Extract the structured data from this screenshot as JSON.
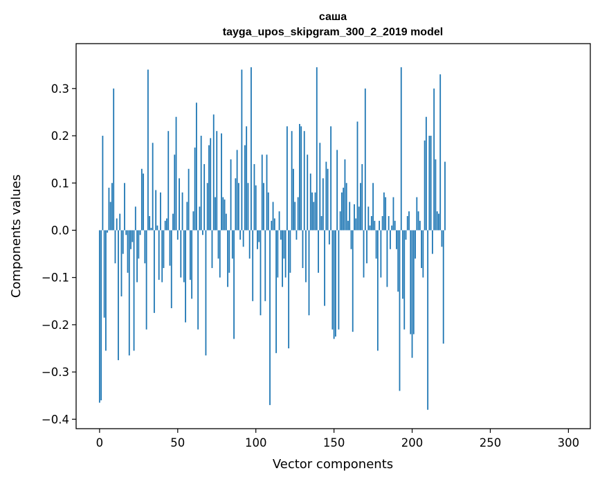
{
  "chart_data": {
    "type": "bar",
    "title": "саша",
    "subtitle": "tayga_upos_skipgram_300_2_2019 model",
    "xlabel": "Vector components",
    "ylabel": "Components values",
    "xlim": [
      -15,
      314
    ],
    "ylim": [
      -0.42,
      0.395
    ],
    "x_ticks": [
      0,
      50,
      100,
      150,
      200,
      250,
      300
    ],
    "y_ticks": [
      -0.4,
      -0.3,
      -0.2,
      -0.1,
      0.0,
      0.1,
      0.2,
      0.3
    ],
    "y_tick_labels": [
      "−0.4",
      "−0.3",
      "−0.2",
      "−0.1",
      "0.0",
      "0.1",
      "0.2",
      "0.3"
    ],
    "bar_color": "#1f77b4",
    "grid": false,
    "values": [
      -0.365,
      -0.36,
      0.2,
      -0.185,
      -0.255,
      -0.005,
      0.09,
      0.06,
      0.1,
      0.3,
      -0.07,
      0.025,
      -0.275,
      0.035,
      -0.14,
      -0.05,
      0.1,
      -0.01,
      -0.09,
      -0.265,
      -0.04,
      -0.025,
      -0.255,
      0.05,
      -0.11,
      -0.06,
      -0.01,
      0.13,
      0.12,
      -0.07,
      -0.21,
      0.34,
      0.03,
      0.005,
      0.185,
      -0.175,
      0.085,
      0.01,
      -0.105,
      0.08,
      -0.11,
      -0.08,
      0.02,
      0.025,
      0.21,
      -0.075,
      -0.165,
      0.035,
      0.16,
      0.24,
      -0.02,
      0.11,
      -0.1,
      0.08,
      -0.11,
      -0.195,
      0.06,
      0.13,
      -0.105,
      -0.145,
      0.04,
      0.175,
      0.27,
      -0.21,
      0.05,
      0.2,
      -0.01,
      0.14,
      -0.265,
      0.1,
      0.18,
      0.195,
      -0.08,
      0.245,
      0.07,
      0.21,
      -0.06,
      -0.1,
      0.205,
      0.07,
      0.065,
      0.035,
      -0.12,
      -0.09,
      0.15,
      -0.06,
      -0.23,
      0.11,
      0.17,
      0.1,
      -0.02,
      0.34,
      -0.035,
      0.18,
      0.22,
      0.1,
      -0.06,
      0.345,
      -0.15,
      0.14,
      0.095,
      -0.04,
      -0.025,
      -0.18,
      0.16,
      0.1,
      -0.15,
      0.16,
      0.08,
      -0.37,
      0.02,
      0.06,
      0.025,
      -0.26,
      -0.1,
      0.04,
      -0.02,
      -0.12,
      -0.06,
      -0.1,
      0.22,
      -0.25,
      -0.09,
      0.21,
      0.13,
      0.06,
      -0.02,
      0.07,
      0.225,
      0.22,
      -0.08,
      0.21,
      -0.11,
      0.16,
      -0.18,
      0.12,
      0.08,
      0.06,
      0.08,
      0.345,
      -0.09,
      0.185,
      0.03,
      0.11,
      -0.16,
      0.145,
      0.13,
      -0.03,
      0.22,
      -0.21,
      -0.23,
      -0.225,
      0.17,
      -0.21,
      0.04,
      0.08,
      0.09,
      0.15,
      0.1,
      0.02,
      0.06,
      -0.04,
      -0.215,
      0.055,
      0.025,
      0.23,
      0.05,
      0.1,
      0.14,
      -0.1,
      0.3,
      -0.07,
      0.05,
      0.01,
      0.03,
      0.1,
      0.02,
      -0.06,
      -0.255,
      0.02,
      -0.1,
      0.03,
      0.08,
      0.07,
      -0.12,
      0.03,
      -0.04,
      0.01,
      0.07,
      0.02,
      -0.04,
      -0.13,
      -0.34,
      0.345,
      -0.145,
      -0.21,
      -0.02,
      0.03,
      0.04,
      -0.22,
      -0.27,
      -0.22,
      -0.06,
      0.07,
      0.04,
      0.02,
      -0.08,
      -0.1,
      0.19,
      0.24,
      -0.38,
      0.2,
      0.2,
      -0.05,
      0.3,
      0.15,
      0.04,
      0.035,
      0.33,
      -0.035,
      -0.24,
      0.145
    ]
  }
}
